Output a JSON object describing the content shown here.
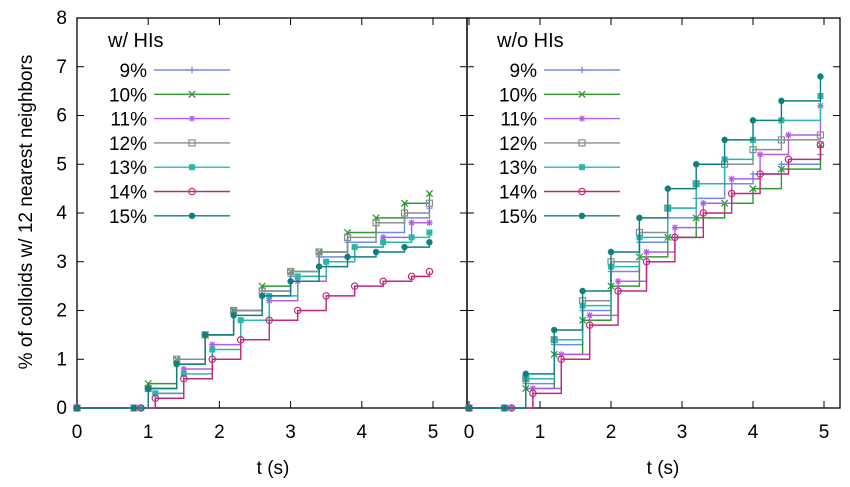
{
  "chart_data": [
    {
      "type": "line",
      "title": "w/ HIs",
      "xlabel": "t (s)",
      "ylabel": "% of colloids w/ 12 nearest neighbors",
      "xlim": [
        0,
        5.5
      ],
      "ylim": [
        0,
        8
      ],
      "xticks": [
        "0",
        "1",
        "2",
        "3",
        "4",
        "5"
      ],
      "yticks": [
        "0",
        "1",
        "2",
        "3",
        "4",
        "5",
        "6",
        "7",
        "8"
      ],
      "grid": false,
      "legend_position": "top-left",
      "series": [
        {
          "name": "9%",
          "color": "#6a8ee8",
          "marker": "plus",
          "x": [
            0,
            0.8,
            1.0,
            1.4,
            1.8,
            2.2,
            2.6,
            3.0,
            3.4,
            3.8,
            4.2,
            4.6,
            4.95
          ],
          "y": [
            0,
            0,
            0.4,
            0.9,
            1.5,
            2.0,
            2.4,
            2.7,
            3.1,
            3.4,
            3.6,
            3.9,
            4.1
          ]
        },
        {
          "name": "10%",
          "color": "#2e9a2e",
          "marker": "x",
          "x": [
            0,
            0.8,
            1.0,
            1.4,
            1.8,
            2.2,
            2.6,
            3.0,
            3.4,
            3.8,
            4.2,
            4.6,
            4.95
          ],
          "y": [
            0,
            0,
            0.5,
            1.0,
            1.5,
            2.0,
            2.5,
            2.8,
            3.2,
            3.6,
            3.9,
            4.2,
            4.4
          ]
        },
        {
          "name": "11%",
          "color": "#b45ce6",
          "marker": "star",
          "x": [
            0,
            0.9,
            1.1,
            1.5,
            1.9,
            2.3,
            2.7,
            3.1,
            3.5,
            3.9,
            4.3,
            4.7,
            4.95
          ],
          "y": [
            0,
            0,
            0.3,
            0.8,
            1.3,
            1.8,
            2.2,
            2.6,
            3.0,
            3.3,
            3.5,
            3.8,
            3.8
          ]
        },
        {
          "name": "12%",
          "color": "#8c8c8c",
          "marker": "square-open",
          "x": [
            0,
            0.8,
            1.0,
            1.4,
            1.8,
            2.2,
            2.6,
            3.0,
            3.4,
            3.8,
            4.2,
            4.6,
            4.95
          ],
          "y": [
            0,
            0,
            0.4,
            1.0,
            1.5,
            2.0,
            2.4,
            2.8,
            3.2,
            3.5,
            3.8,
            4.0,
            4.2
          ]
        },
        {
          "name": "13%",
          "color": "#2ab5ad",
          "marker": "square",
          "x": [
            0,
            0.9,
            1.1,
            1.5,
            1.9,
            2.3,
            2.7,
            3.1,
            3.5,
            3.9,
            4.3,
            4.7,
            4.95
          ],
          "y": [
            0,
            0,
            0.3,
            0.7,
            1.2,
            1.8,
            2.3,
            2.7,
            3.0,
            3.3,
            3.4,
            3.5,
            3.6
          ]
        },
        {
          "name": "14%",
          "color": "#c4267a",
          "marker": "circle-open",
          "x": [
            0,
            0.9,
            1.1,
            1.5,
            1.9,
            2.3,
            2.7,
            3.1,
            3.5,
            3.9,
            4.3,
            4.7,
            4.95
          ],
          "y": [
            0,
            0,
            0.2,
            0.6,
            1.0,
            1.4,
            1.8,
            2.0,
            2.3,
            2.5,
            2.6,
            2.7,
            2.8
          ]
        },
        {
          "name": "15%",
          "color": "#0e7f7f",
          "marker": "circle",
          "x": [
            0,
            0.8,
            1.0,
            1.4,
            1.8,
            2.2,
            2.6,
            3.0,
            3.4,
            3.8,
            4.2,
            4.6,
            4.95
          ],
          "y": [
            0,
            0,
            0.4,
            0.9,
            1.5,
            1.9,
            2.3,
            2.6,
            2.9,
            3.1,
            3.2,
            3.3,
            3.4
          ]
        }
      ]
    },
    {
      "type": "line",
      "title": "w/o HIs",
      "xlabel": "t (s)",
      "ylabel": "",
      "xlim": [
        0,
        5.5
      ],
      "ylim": [
        0,
        8
      ],
      "xticks": [
        "0",
        "1",
        "2",
        "3",
        "4",
        "5"
      ],
      "yticks": [],
      "grid": false,
      "legend_position": "top-left",
      "series": [
        {
          "name": "9%",
          "color": "#6a8ee8",
          "marker": "plus",
          "x": [
            0,
            0.5,
            0.8,
            1.2,
            1.6,
            2.0,
            2.4,
            2.8,
            3.2,
            3.6,
            4.0,
            4.4,
            4.95
          ],
          "y": [
            0,
            0,
            0.5,
            1.3,
            2.0,
            2.8,
            3.4,
            3.9,
            4.3,
            4.6,
            4.8,
            5.0,
            5.2
          ]
        },
        {
          "name": "10%",
          "color": "#2e9a2e",
          "marker": "x",
          "x": [
            0,
            0.5,
            0.8,
            1.2,
            1.6,
            2.0,
            2.4,
            2.8,
            3.2,
            3.6,
            4.0,
            4.4,
            4.95
          ],
          "y": [
            0,
            0,
            0.4,
            1.1,
            1.8,
            2.5,
            3.1,
            3.5,
            3.9,
            4.2,
            4.5,
            4.9,
            5.4
          ]
        },
        {
          "name": "11%",
          "color": "#b45ce6",
          "marker": "star",
          "x": [
            0,
            0.6,
            0.9,
            1.3,
            1.7,
            2.1,
            2.5,
            2.9,
            3.3,
            3.7,
            4.1,
            4.5,
            4.95
          ],
          "y": [
            0,
            0,
            0.4,
            1.1,
            1.9,
            2.6,
            3.2,
            3.7,
            4.2,
            4.7,
            5.2,
            5.6,
            6.2
          ]
        },
        {
          "name": "12%",
          "color": "#8c8c8c",
          "marker": "square-open",
          "x": [
            0,
            0.5,
            0.8,
            1.2,
            1.6,
            2.0,
            2.4,
            2.8,
            3.2,
            3.6,
            4.0,
            4.4,
            4.95
          ],
          "y": [
            0,
            0,
            0.6,
            1.4,
            2.2,
            3.0,
            3.6,
            4.1,
            4.6,
            5.0,
            5.3,
            5.5,
            5.6
          ]
        },
        {
          "name": "13%",
          "color": "#2ab5ad",
          "marker": "square",
          "x": [
            0,
            0.5,
            0.8,
            1.2,
            1.6,
            2.0,
            2.4,
            2.8,
            3.2,
            3.6,
            4.0,
            4.4,
            4.95
          ],
          "y": [
            0,
            0,
            0.6,
            1.4,
            2.1,
            2.9,
            3.5,
            4.1,
            4.6,
            5.1,
            5.5,
            5.9,
            6.4
          ]
        },
        {
          "name": "14%",
          "color": "#c4267a",
          "marker": "circle-open",
          "x": [
            0,
            0.6,
            0.9,
            1.3,
            1.7,
            2.1,
            2.5,
            2.9,
            3.3,
            3.7,
            4.1,
            4.5,
            4.95
          ],
          "y": [
            0,
            0,
            0.3,
            1.0,
            1.7,
            2.4,
            3.0,
            3.5,
            4.0,
            4.4,
            4.8,
            5.1,
            5.4
          ]
        },
        {
          "name": "15%",
          "color": "#0e7f7f",
          "marker": "circle",
          "x": [
            0,
            0.5,
            0.8,
            1.2,
            1.6,
            2.0,
            2.4,
            2.8,
            3.2,
            3.6,
            4.0,
            4.4,
            4.95
          ],
          "y": [
            0,
            0,
            0.7,
            1.6,
            2.4,
            3.2,
            3.9,
            4.5,
            5.0,
            5.5,
            5.9,
            6.3,
            6.8
          ]
        }
      ]
    }
  ]
}
